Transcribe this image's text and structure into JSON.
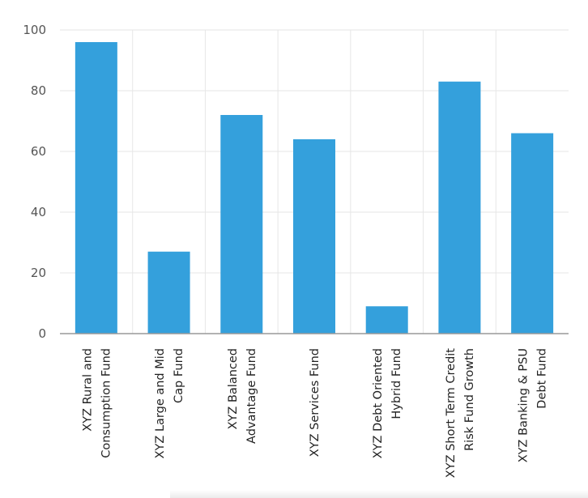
{
  "chart_data": {
    "type": "bar",
    "title": "",
    "xlabel": "",
    "ylabel": "",
    "ylim": [
      0,
      100
    ],
    "yticks": [
      0,
      20,
      40,
      60,
      80,
      100
    ],
    "grid": true,
    "legend": "none",
    "bar_color": "#34a0dc",
    "categories": [
      [
        "XYZ Rural and",
        "Consumption Fund"
      ],
      [
        "XYZ Large and Mid",
        "Cap Fund"
      ],
      [
        "XYZ Balanced",
        "Advantage Fund"
      ],
      [
        "XYZ Services Fund"
      ],
      [
        "XYZ Debt Oriented",
        "Hybrid Fund"
      ],
      [
        "XYZ Short Term Credit",
        "Risk Fund Growth"
      ],
      [
        "XYZ Banking & PSU",
        "Debt Fund"
      ]
    ],
    "values": [
      96,
      27,
      72,
      64,
      9,
      83,
      66
    ]
  }
}
